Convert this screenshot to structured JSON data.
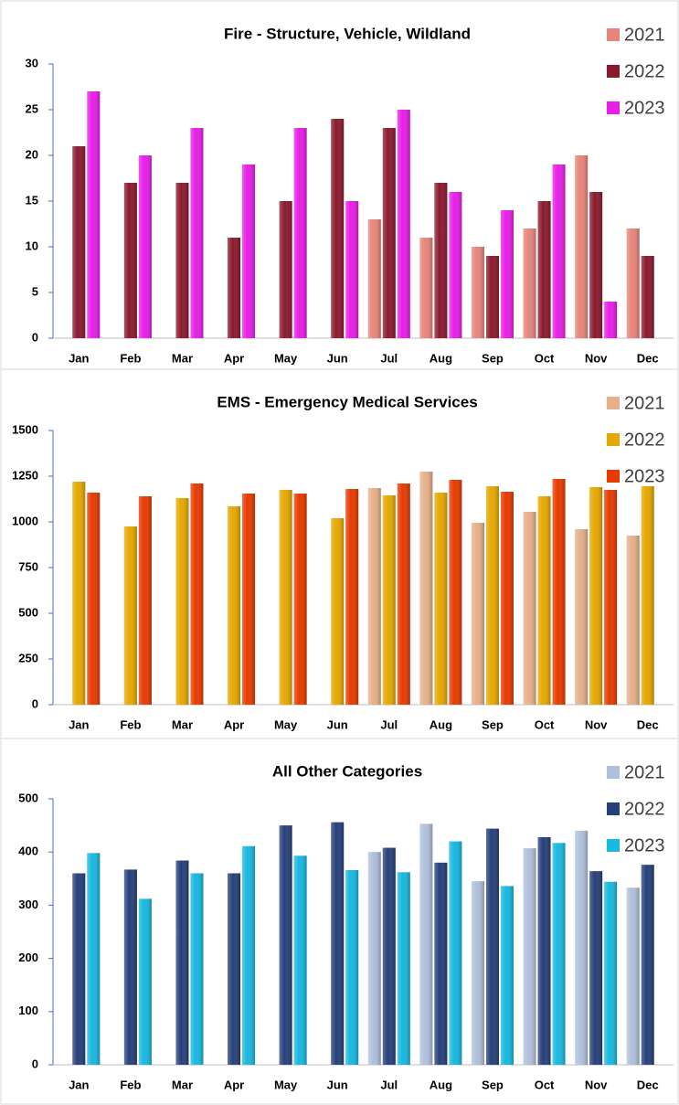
{
  "chart_data": [
    {
      "type": "bar",
      "title": "Fire - Structure, Vehicle, Wildland",
      "categories": [
        "Jan",
        "Feb",
        "Mar",
        "Apr",
        "May",
        "Jun",
        "Jul",
        "Aug",
        "Sep",
        "Oct",
        "Nov",
        "Dec"
      ],
      "series": [
        {
          "name": "2021",
          "color": "#e8857a",
          "values": [
            null,
            null,
            null,
            null,
            null,
            null,
            13,
            11,
            10,
            12,
            20,
            12
          ]
        },
        {
          "name": "2022",
          "color": "#8b1a2e",
          "values": [
            21,
            17,
            17,
            11,
            15,
            24,
            23,
            17,
            9,
            15,
            16,
            9
          ]
        },
        {
          "name": "2023",
          "color": "#e81ee8",
          "values": [
            27,
            20,
            23,
            19,
            23,
            15,
            25,
            16,
            14,
            19,
            4,
            null
          ]
        }
      ],
      "ylim": [
        0,
        30
      ],
      "yticks": [
        0,
        5,
        10,
        15,
        20,
        25,
        30
      ]
    },
    {
      "type": "bar",
      "title": "EMS - Emergency Medical Services",
      "categories": [
        "Jan",
        "Feb",
        "Mar",
        "Apr",
        "May",
        "Jun",
        "Jul",
        "Aug",
        "Sep",
        "Oct",
        "Nov",
        "Dec"
      ],
      "series": [
        {
          "name": "2021",
          "color": "#e6b08a",
          "values": [
            null,
            null,
            null,
            null,
            null,
            null,
            1185,
            1275,
            995,
            1055,
            960,
            925
          ]
        },
        {
          "name": "2022",
          "color": "#e6a800",
          "values": [
            1220,
            975,
            1130,
            1085,
            1175,
            1020,
            1145,
            1160,
            1195,
            1140,
            1190,
            1195
          ]
        },
        {
          "name": "2023",
          "color": "#e83a00",
          "values": [
            1160,
            1140,
            1210,
            1155,
            1155,
            1180,
            1210,
            1230,
            1165,
            1235,
            1175,
            null
          ]
        }
      ],
      "ylim": [
        0,
        1500
      ],
      "yticks": [
        0,
        250,
        500,
        750,
        1000,
        1250,
        1500
      ]
    },
    {
      "type": "bar",
      "title": "All Other Categories",
      "categories": [
        "Jan",
        "Feb",
        "Mar",
        "Apr",
        "May",
        "Jun",
        "Jul",
        "Aug",
        "Sep",
        "Oct",
        "Nov",
        "Dec"
      ],
      "series": [
        {
          "name": "2021",
          "color": "#b0c0dc",
          "values": [
            null,
            null,
            null,
            null,
            null,
            null,
            400,
            453,
            345,
            407,
            440,
            333
          ]
        },
        {
          "name": "2022",
          "color": "#27407a",
          "values": [
            360,
            367,
            384,
            360,
            450,
            456,
            408,
            380,
            444,
            428,
            364,
            376
          ]
        },
        {
          "name": "2023",
          "color": "#18b8e0",
          "values": [
            398,
            312,
            360,
            411,
            393,
            366,
            362,
            420,
            336,
            417,
            344,
            null
          ]
        }
      ],
      "ylim": [
        0,
        500
      ],
      "yticks": [
        0,
        100,
        200,
        300,
        400,
        500
      ]
    }
  ]
}
